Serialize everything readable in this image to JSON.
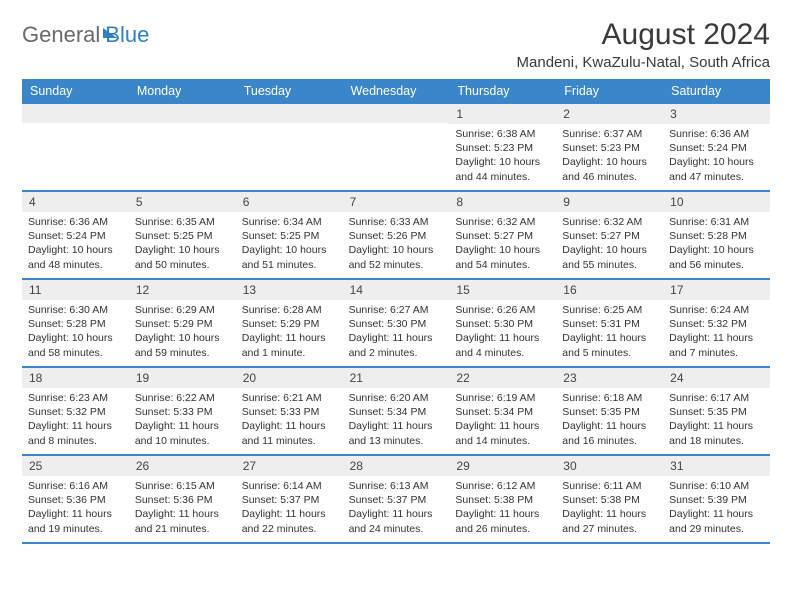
{
  "brand": {
    "part1": "General",
    "part2": "Blue"
  },
  "title": "August 2024",
  "location": "Mandeni, KwaZulu-Natal, South Africa",
  "colors": {
    "header_bg": "#3a86c8",
    "header_fg": "#ffffff",
    "daynum_bg": "#eeeeee",
    "text": "#333333",
    "brand_gray": "#6a6a6a",
    "brand_blue": "#2f7fc1"
  },
  "weekdays": [
    "Sunday",
    "Monday",
    "Tuesday",
    "Wednesday",
    "Thursday",
    "Friday",
    "Saturday"
  ],
  "weeks": [
    [
      {
        "blank": true
      },
      {
        "blank": true
      },
      {
        "blank": true
      },
      {
        "blank": true
      },
      {
        "n": "1",
        "sr": "Sunrise: 6:38 AM",
        "ss": "Sunset: 5:23 PM",
        "dl": "Daylight: 10 hours and 44 minutes."
      },
      {
        "n": "2",
        "sr": "Sunrise: 6:37 AM",
        "ss": "Sunset: 5:23 PM",
        "dl": "Daylight: 10 hours and 46 minutes."
      },
      {
        "n": "3",
        "sr": "Sunrise: 6:36 AM",
        "ss": "Sunset: 5:24 PM",
        "dl": "Daylight: 10 hours and 47 minutes."
      }
    ],
    [
      {
        "n": "4",
        "sr": "Sunrise: 6:36 AM",
        "ss": "Sunset: 5:24 PM",
        "dl": "Daylight: 10 hours and 48 minutes."
      },
      {
        "n": "5",
        "sr": "Sunrise: 6:35 AM",
        "ss": "Sunset: 5:25 PM",
        "dl": "Daylight: 10 hours and 50 minutes."
      },
      {
        "n": "6",
        "sr": "Sunrise: 6:34 AM",
        "ss": "Sunset: 5:25 PM",
        "dl": "Daylight: 10 hours and 51 minutes."
      },
      {
        "n": "7",
        "sr": "Sunrise: 6:33 AM",
        "ss": "Sunset: 5:26 PM",
        "dl": "Daylight: 10 hours and 52 minutes."
      },
      {
        "n": "8",
        "sr": "Sunrise: 6:32 AM",
        "ss": "Sunset: 5:27 PM",
        "dl": "Daylight: 10 hours and 54 minutes."
      },
      {
        "n": "9",
        "sr": "Sunrise: 6:32 AM",
        "ss": "Sunset: 5:27 PM",
        "dl": "Daylight: 10 hours and 55 minutes."
      },
      {
        "n": "10",
        "sr": "Sunrise: 6:31 AM",
        "ss": "Sunset: 5:28 PM",
        "dl": "Daylight: 10 hours and 56 minutes."
      }
    ],
    [
      {
        "n": "11",
        "sr": "Sunrise: 6:30 AM",
        "ss": "Sunset: 5:28 PM",
        "dl": "Daylight: 10 hours and 58 minutes."
      },
      {
        "n": "12",
        "sr": "Sunrise: 6:29 AM",
        "ss": "Sunset: 5:29 PM",
        "dl": "Daylight: 10 hours and 59 minutes."
      },
      {
        "n": "13",
        "sr": "Sunrise: 6:28 AM",
        "ss": "Sunset: 5:29 PM",
        "dl": "Daylight: 11 hours and 1 minute."
      },
      {
        "n": "14",
        "sr": "Sunrise: 6:27 AM",
        "ss": "Sunset: 5:30 PM",
        "dl": "Daylight: 11 hours and 2 minutes."
      },
      {
        "n": "15",
        "sr": "Sunrise: 6:26 AM",
        "ss": "Sunset: 5:30 PM",
        "dl": "Daylight: 11 hours and 4 minutes."
      },
      {
        "n": "16",
        "sr": "Sunrise: 6:25 AM",
        "ss": "Sunset: 5:31 PM",
        "dl": "Daylight: 11 hours and 5 minutes."
      },
      {
        "n": "17",
        "sr": "Sunrise: 6:24 AM",
        "ss": "Sunset: 5:32 PM",
        "dl": "Daylight: 11 hours and 7 minutes."
      }
    ],
    [
      {
        "n": "18",
        "sr": "Sunrise: 6:23 AM",
        "ss": "Sunset: 5:32 PM",
        "dl": "Daylight: 11 hours and 8 minutes."
      },
      {
        "n": "19",
        "sr": "Sunrise: 6:22 AM",
        "ss": "Sunset: 5:33 PM",
        "dl": "Daylight: 11 hours and 10 minutes."
      },
      {
        "n": "20",
        "sr": "Sunrise: 6:21 AM",
        "ss": "Sunset: 5:33 PM",
        "dl": "Daylight: 11 hours and 11 minutes."
      },
      {
        "n": "21",
        "sr": "Sunrise: 6:20 AM",
        "ss": "Sunset: 5:34 PM",
        "dl": "Daylight: 11 hours and 13 minutes."
      },
      {
        "n": "22",
        "sr": "Sunrise: 6:19 AM",
        "ss": "Sunset: 5:34 PM",
        "dl": "Daylight: 11 hours and 14 minutes."
      },
      {
        "n": "23",
        "sr": "Sunrise: 6:18 AM",
        "ss": "Sunset: 5:35 PM",
        "dl": "Daylight: 11 hours and 16 minutes."
      },
      {
        "n": "24",
        "sr": "Sunrise: 6:17 AM",
        "ss": "Sunset: 5:35 PM",
        "dl": "Daylight: 11 hours and 18 minutes."
      }
    ],
    [
      {
        "n": "25",
        "sr": "Sunrise: 6:16 AM",
        "ss": "Sunset: 5:36 PM",
        "dl": "Daylight: 11 hours and 19 minutes."
      },
      {
        "n": "26",
        "sr": "Sunrise: 6:15 AM",
        "ss": "Sunset: 5:36 PM",
        "dl": "Daylight: 11 hours and 21 minutes."
      },
      {
        "n": "27",
        "sr": "Sunrise: 6:14 AM",
        "ss": "Sunset: 5:37 PM",
        "dl": "Daylight: 11 hours and 22 minutes."
      },
      {
        "n": "28",
        "sr": "Sunrise: 6:13 AM",
        "ss": "Sunset: 5:37 PM",
        "dl": "Daylight: 11 hours and 24 minutes."
      },
      {
        "n": "29",
        "sr": "Sunrise: 6:12 AM",
        "ss": "Sunset: 5:38 PM",
        "dl": "Daylight: 11 hours and 26 minutes."
      },
      {
        "n": "30",
        "sr": "Sunrise: 6:11 AM",
        "ss": "Sunset: 5:38 PM",
        "dl": "Daylight: 11 hours and 27 minutes."
      },
      {
        "n": "31",
        "sr": "Sunrise: 6:10 AM",
        "ss": "Sunset: 5:39 PM",
        "dl": "Daylight: 11 hours and 29 minutes."
      }
    ]
  ]
}
